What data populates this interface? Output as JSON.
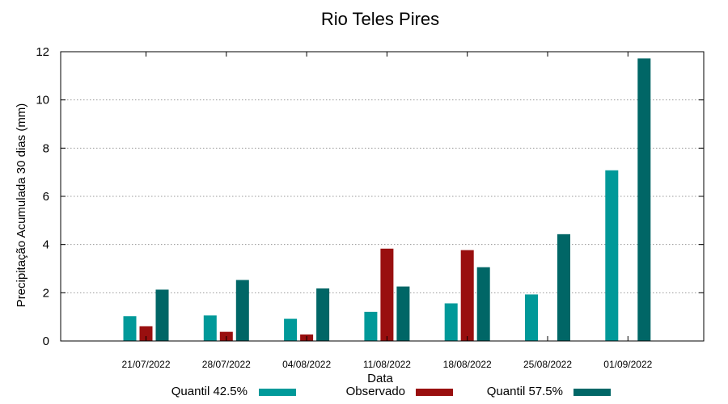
{
  "chart_data": {
    "type": "bar",
    "title": "Rio Teles Pires",
    "xlabel": "Data",
    "ylabel": "Precipitação Acumulada 30 dias (mm)",
    "ylim": [
      0,
      12
    ],
    "yticks": [
      0,
      2,
      4,
      6,
      8,
      10,
      12
    ],
    "grid": true,
    "legend_position": "bottom",
    "categories": [
      "21/07/2022",
      "28/07/2022",
      "04/08/2022",
      "11/08/2022",
      "18/08/2022",
      "25/08/2022",
      "01/09/2022"
    ],
    "series": [
      {
        "name": "Quantil 42.5%",
        "color": "#009999",
        "values": [
          1.03,
          1.06,
          0.92,
          1.21,
          1.56,
          1.93,
          7.08
        ]
      },
      {
        "name": "Observado",
        "color": "#990f0f",
        "values": [
          0.61,
          0.38,
          0.27,
          3.83,
          3.77,
          null,
          null
        ]
      },
      {
        "name": "Quantil 57.5%",
        "color": "#006666",
        "values": [
          2.13,
          2.53,
          2.18,
          2.26,
          3.06,
          4.43,
          11.72
        ]
      }
    ]
  }
}
